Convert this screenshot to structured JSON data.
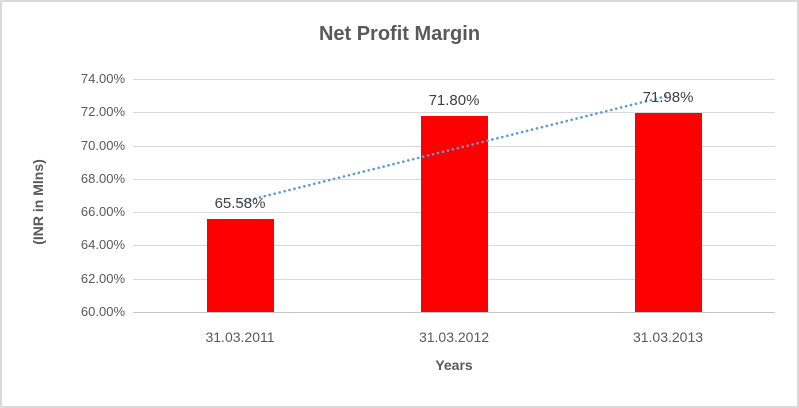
{
  "frame": {
    "background": "#ffffff",
    "border_color": "#d9d9d9"
  },
  "chart_data": {
    "type": "bar",
    "title": "Net Profit Margin",
    "xlabel": "Years",
    "ylabel": "(INR in Mlns)",
    "categories": [
      "31.03.2011",
      "31.03.2012",
      "31.03.2013"
    ],
    "values": [
      65.58,
      71.8,
      71.98
    ],
    "data_labels": [
      "65.58%",
      "71.80%",
      "71.98%"
    ],
    "ylim": [
      60,
      74
    ],
    "ytick_step": 2,
    "ytick_labels": [
      "74.00%",
      "72.00%",
      "70.00%",
      "68.00%",
      "66.00%",
      "64.00%",
      "62.00%",
      "60.00%"
    ],
    "grid": true,
    "legend": "none",
    "bar_color": "#ff0000",
    "trendline": {
      "style": "dotted",
      "color": "#5b9bd5",
      "start_value": 66.59,
      "end_value": 72.99
    },
    "colors": {
      "title_text": "#595959",
      "tick_text": "#595959",
      "data_label_text": "#404040",
      "gridline": "#d9d9d9"
    }
  }
}
